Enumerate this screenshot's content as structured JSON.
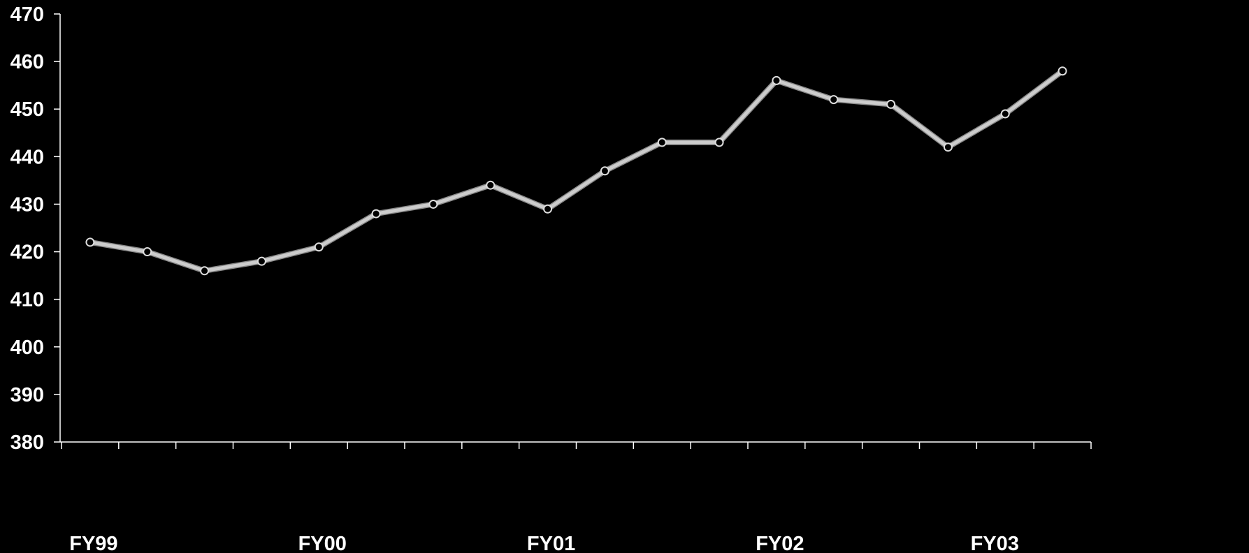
{
  "chart_data": {
    "type": "line",
    "title": "",
    "xlabel": "",
    "ylabel": "",
    "x_tick_labels": [
      "FY99",
      "FY00",
      "FY01",
      "FY02",
      "FY03"
    ],
    "ylim": [
      380,
      470
    ],
    "y_ticks": [
      380,
      390,
      400,
      410,
      420,
      430,
      440,
      450,
      460,
      470
    ],
    "grid": false,
    "legend": "none",
    "series": [
      {
        "values": [
          422,
          420,
          416,
          418,
          421,
          428,
          430,
          434,
          429,
          437,
          443,
          443,
          456,
          452,
          451,
          442,
          449,
          458
        ],
        "color": "#cccccc",
        "marker": "circle"
      }
    ]
  }
}
